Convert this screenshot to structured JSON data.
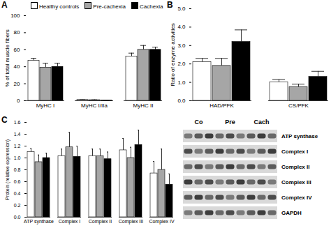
{
  "chart_data": [
    {
      "type": "bar",
      "title": "A",
      "ylabel": "% of total muscle fibers",
      "categories": [
        "MyHC I",
        "MyHC I/IIa",
        "MyHC II"
      ],
      "series": [
        {
          "name": "Healthy controls",
          "color": "#ffffff",
          "values": [
            47,
            1,
            52
          ],
          "errors": [
            3,
            0.3,
            4
          ]
        },
        {
          "name": "Pre-cachexia",
          "color": "#a6a6a6",
          "values": [
            39,
            0.8,
            60
          ],
          "errors": [
            5,
            0.3,
            5
          ]
        },
        {
          "name": "Cachexia",
          "color": "#000000",
          "values": [
            40,
            0.5,
            60
          ],
          "errors": [
            4,
            0.2,
            3
          ]
        }
      ],
      "ylim": [
        0,
        100
      ],
      "yticks": [
        0,
        20,
        40,
        60,
        80,
        100
      ],
      "legend": "top"
    },
    {
      "type": "bar",
      "title": "B",
      "ylabel": "Ratio of enzyme activities",
      "categories": [
        "HAD/PFK",
        "CS/PFK"
      ],
      "series": [
        {
          "name": "Healthy controls",
          "color": "#ffffff",
          "values": [
            2.1,
            1.0
          ],
          "errors": [
            0.2,
            0.15
          ]
        },
        {
          "name": "Pre-cachexia",
          "color": "#a6a6a6",
          "values": [
            1.9,
            0.75
          ],
          "errors": [
            0.4,
            0.15
          ]
        },
        {
          "name": "Cachexia",
          "color": "#000000",
          "values": [
            3.2,
            1.3
          ],
          "errors": [
            0.65,
            0.3
          ]
        }
      ],
      "ylim": [
        0,
        5
      ],
      "yticks": [
        0,
        1,
        2,
        3,
        4,
        5
      ]
    },
    {
      "type": "bar",
      "title": "C",
      "ylabel": "Protein (relative expression)",
      "categories": [
        "ATP synthase",
        "Complex I",
        "Complex II",
        "Complex III",
        "Complex IV"
      ],
      "series": [
        {
          "name": "Healthy controls",
          "color": "#ffffff",
          "values": [
            1.1,
            1.03,
            1.03,
            1.13,
            0.74
          ],
          "errors": [
            0.06,
            0.12,
            0.12,
            0.2,
            0.2
          ]
        },
        {
          "name": "Pre-cachexia",
          "color": "#a6a6a6",
          "values": [
            0.93,
            1.18,
            1.03,
            1.0,
            0.8
          ],
          "errors": [
            0.12,
            0.25,
            0.12,
            0.18,
            0.35
          ]
        },
        {
          "name": "Cachexia",
          "color": "#000000",
          "values": [
            1.0,
            1.02,
            0.98,
            1.22,
            0.55
          ],
          "errors": [
            0.08,
            0.18,
            0.12,
            0.25,
            0.18
          ]
        }
      ],
      "ylim": [
        0,
        1.6
      ],
      "yticks": [
        0,
        0.2,
        0.4,
        0.6,
        0.8,
        1,
        1.2,
        1.4,
        1.6
      ]
    }
  ],
  "western_blot": {
    "lanes": [
      "Co",
      "Pre",
      "Cach"
    ],
    "rows": [
      "ATP synthase",
      "Complex I",
      "Complex II",
      "Complex III",
      "Complex IV",
      "GAPDH"
    ]
  }
}
